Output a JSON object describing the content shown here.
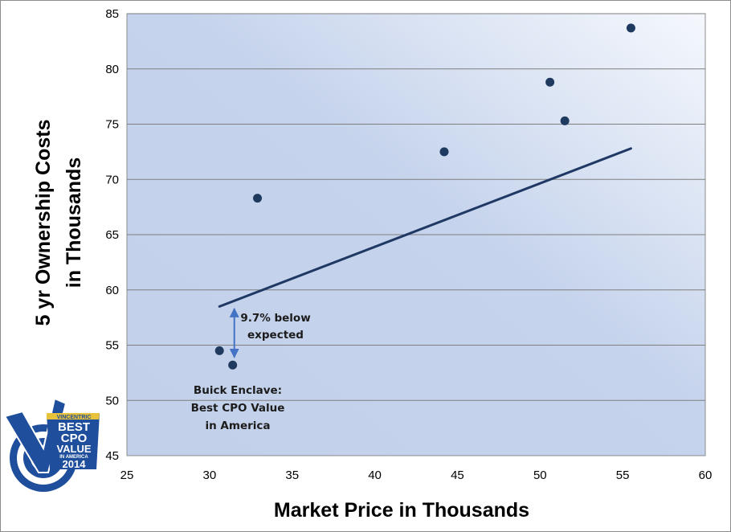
{
  "chart_data": {
    "type": "scatter",
    "xlabel": "Market Price in Thousands",
    "ylabel": [
      "5 yr Ownership Costs",
      "in Thousands"
    ],
    "xlim": [
      25,
      60
    ],
    "ylim": [
      45,
      85
    ],
    "xticks": [
      25,
      30,
      35,
      40,
      45,
      50,
      55,
      60
    ],
    "yticks": [
      45,
      50,
      55,
      60,
      65,
      70,
      75,
      80,
      85
    ],
    "grid": "horizontal",
    "points": [
      {
        "x": 30.6,
        "y": 54.5
      },
      {
        "x": 31.4,
        "y": 53.2
      },
      {
        "x": 32.9,
        "y": 68.3
      },
      {
        "x": 44.2,
        "y": 72.5
      },
      {
        "x": 50.6,
        "y": 78.8
      },
      {
        "x": 51.5,
        "y": 75.3
      },
      {
        "x": 55.5,
        "y": 83.7
      }
    ],
    "trendline": {
      "x": [
        30.6,
        55.5
      ],
      "y": [
        58.5,
        72.8
      ]
    },
    "annotations": {
      "gap_label": [
        "9.7% below",
        "expected"
      ],
      "gap_arrow": {
        "x": 31.5,
        "y_from": 53.9,
        "y_to": 58.3
      },
      "callout": [
        "Buick Enclave:",
        "Best CPO Value",
        "in America"
      ]
    }
  },
  "badge": {
    "line1": "VINCENTRIC",
    "line2": "BEST",
    "line3": "CPO",
    "line4": "VALUE",
    "line5": "IN AMERICA",
    "line6": "2014"
  },
  "colors": {
    "marker": "#1f3a5f",
    "trendline": "#1f3864",
    "arrow": "#4472c4",
    "plot_bg_dark": "#b9c9e6",
    "plot_bg_light": "#f4f7fc",
    "gridline": "#7f7f7f"
  }
}
